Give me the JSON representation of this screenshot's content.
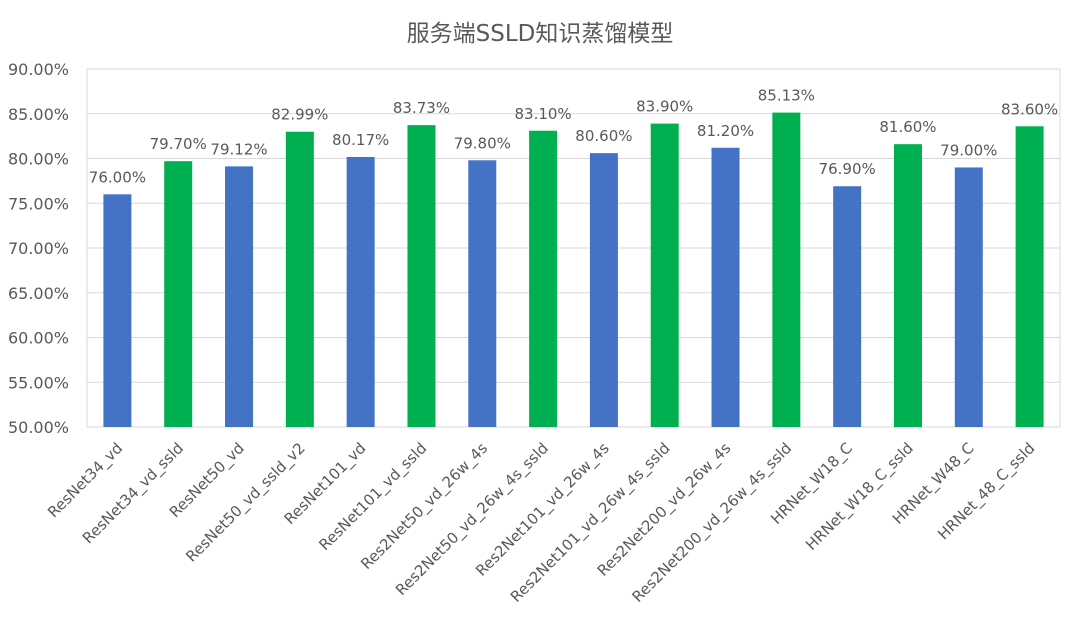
{
  "chart_data": {
    "type": "bar",
    "title": "服务端SSLD知识蒸馏模型",
    "xlabel": "",
    "ylabel": "",
    "ylim": [
      50,
      90
    ],
    "yticks": [
      "50.00%",
      "55.00%",
      "60.00%",
      "65.00%",
      "70.00%",
      "75.00%",
      "80.00%",
      "85.00%",
      "90.00%"
    ],
    "grid": true,
    "legend": "none",
    "colors": {
      "base": "#4472C4",
      "ssld": "#00B050"
    },
    "categories": [
      "ResNet34_vd",
      "ResNet34_vd_ssld",
      "ResNet50_vd",
      "ResNet50_vd_ssld_v2",
      "ResNet101_vd",
      "ResNet101_vd_ssld",
      "Res2Net50_vd_26w_4s",
      "Res2Net50_vd_26w_4s_ssld",
      "Res2Net101_vd_26w_4s",
      "Res2Net101_vd_26w_4s_ssld",
      "Res2Net200_vd_26w_4s",
      "Res2Net200_vd_26w_4s_ssld",
      "HRNet_W18_C",
      "HRNet_W18_C_ssld",
      "HRNet_W48_C",
      "HRNet_48_C_ssld"
    ],
    "values": [
      76.0,
      79.7,
      79.12,
      82.99,
      80.17,
      83.73,
      79.8,
      83.1,
      80.6,
      83.9,
      81.2,
      85.13,
      76.9,
      81.6,
      79.0,
      83.6
    ],
    "labels": [
      "76.00%",
      "79.70%",
      "79.12%",
      "82.99%",
      "80.17%",
      "83.73%",
      "79.80%",
      "83.10%",
      "80.60%",
      "83.90%",
      "81.20%",
      "85.13%",
      "76.90%",
      "81.60%",
      "79.00%",
      "83.60%"
    ],
    "bar_colors": [
      "base",
      "ssld",
      "base",
      "ssld",
      "base",
      "ssld",
      "base",
      "ssld",
      "base",
      "ssld",
      "base",
      "ssld",
      "base",
      "ssld",
      "base",
      "ssld"
    ]
  }
}
